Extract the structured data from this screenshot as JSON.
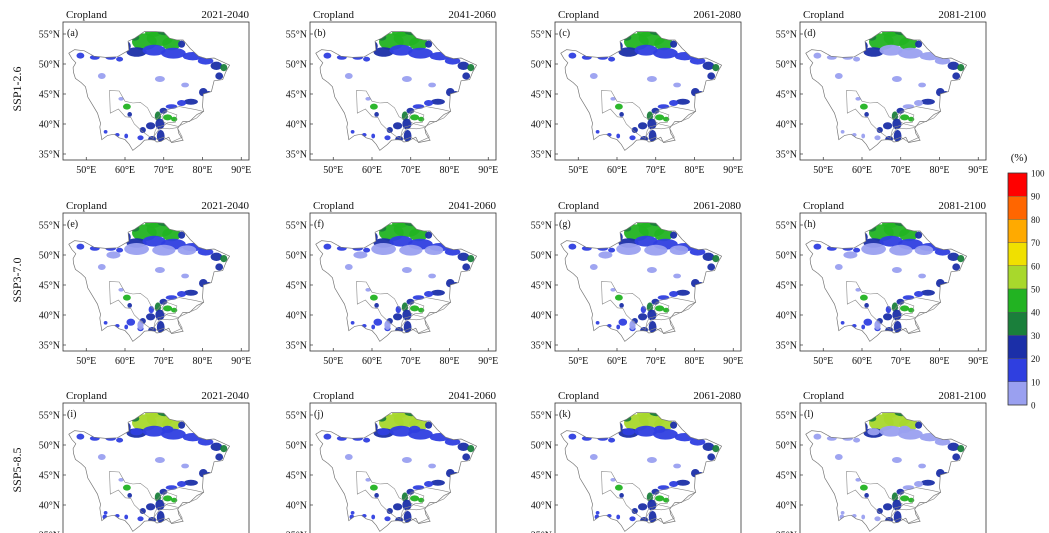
{
  "figure": {
    "columns": [
      {
        "variable": "Cropland",
        "period": "2021-2040"
      },
      {
        "variable": "Cropland",
        "period": "2041-2060"
      },
      {
        "variable": "Cropland",
        "period": "2061-2080"
      },
      {
        "variable": "Cropland",
        "period": "2081-2100"
      }
    ],
    "rows": [
      "SSP1-2.6",
      "SSP3-7.0",
      "SSP5-8.5"
    ],
    "panel_letters": [
      "(a)",
      "(b)",
      "(c)",
      "(d)",
      "(e)",
      "(f)",
      "(g)",
      "(h)",
      "(i)",
      "(j)",
      "(k)",
      "(l)"
    ],
    "lat_ticks": [
      "55°N",
      "50°N",
      "45°N",
      "40°N",
      "35°N"
    ],
    "lon_ticks": [
      "50°E",
      "60°E",
      "70°E",
      "80°E",
      "90°E"
    ],
    "lat_range": [
      34,
      57
    ],
    "lon_range": [
      44,
      92
    ]
  },
  "colorbar": {
    "unit_label": "(%)",
    "tick_labels": [
      "100",
      "90",
      "80",
      "70",
      "60",
      "50",
      "40",
      "30",
      "20",
      "10",
      "0"
    ],
    "colors": [
      "#ff0000",
      "#ff6600",
      "#ffaa00",
      "#f0e000",
      "#a8d82c",
      "#22b322",
      "#1a7f3b",
      "#1b2fa8",
      "#2f3fe0",
      "#9aa0f0",
      "#ffffff"
    ]
  }
}
